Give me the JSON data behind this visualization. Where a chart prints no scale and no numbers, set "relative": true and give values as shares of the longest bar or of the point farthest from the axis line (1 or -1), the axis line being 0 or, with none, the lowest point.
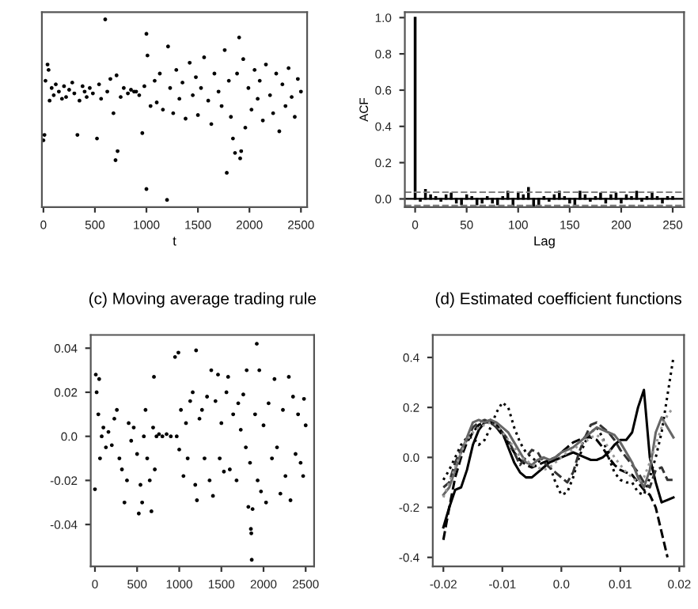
{
  "chart_data": [
    {
      "type": "scatter",
      "relative": true,
      "xlabel": "t",
      "tick_labels": "x",
      "marker": "circle",
      "xlim": [
        -15,
        2560
      ],
      "xticks": [
        0,
        500,
        1000,
        1500,
        2000,
        2500
      ],
      "x": [
        0,
        10,
        20,
        40,
        50,
        60,
        80,
        100,
        120,
        150,
        180,
        200,
        220,
        250,
        280,
        300,
        330,
        350,
        380,
        400,
        420,
        450,
        480,
        520,
        540,
        560,
        600,
        620,
        650,
        680,
        700,
        710,
        720,
        750,
        780,
        820,
        850,
        880,
        900,
        930,
        960,
        980,
        1000,
        1000,
        1010,
        1040,
        1080,
        1100,
        1130,
        1160,
        1200,
        1210,
        1230,
        1260,
        1290,
        1320,
        1350,
        1380,
        1420,
        1450,
        1480,
        1500,
        1530,
        1560,
        1600,
        1630,
        1660,
        1700,
        1730,
        1760,
        1780,
        1800,
        1820,
        1840,
        1860,
        1880,
        1900,
        1910,
        1920,
        1940,
        1960,
        1990,
        2020,
        2050,
        2080,
        2100,
        2130,
        2160,
        2200,
        2230,
        2260,
        2290,
        2320,
        2350,
        2380,
        2410,
        2440,
        2470,
        2500
      ],
      "series": [
        {
          "color": "#000000",
          "values": [
            0.33,
            0.36,
            0.66,
            0.75,
            0.72,
            0.55,
            0.62,
            0.58,
            0.64,
            0.6,
            0.56,
            0.63,
            0.57,
            0.61,
            0.65,
            0.59,
            0.36,
            0.55,
            0.63,
            0.6,
            0.57,
            0.62,
            0.59,
            0.34,
            0.64,
            0.56,
            1.0,
            0.6,
            0.67,
            0.48,
            0.22,
            0.69,
            0.27,
            0.57,
            0.62,
            0.59,
            0.61,
            0.6,
            0.6,
            0.58,
            0.37,
            0.63,
            0.06,
            0.92,
            0.8,
            0.52,
            0.66,
            0.54,
            0.7,
            0.5,
            0.0,
            0.85,
            0.62,
            0.48,
            0.72,
            0.56,
            0.65,
            0.45,
            0.76,
            0.58,
            0.68,
            0.47,
            0.62,
            0.79,
            0.55,
            0.42,
            0.7,
            0.6,
            0.52,
            0.83,
            0.15,
            0.66,
            0.46,
            0.34,
            0.26,
            0.7,
            0.9,
            0.23,
            0.27,
            0.78,
            0.4,
            0.62,
            0.5,
            0.72,
            0.56,
            0.66,
            0.44,
            0.75,
            0.58,
            0.48,
            0.7,
            0.38,
            0.64,
            0.52,
            0.73,
            0.57,
            0.46,
            0.67,
            0.6
          ]
        }
      ]
    },
    {
      "type": "bar",
      "xlabel": "Lag",
      "ylabel": "ACF",
      "xlim": [
        -10,
        261
      ],
      "xticks": [
        0,
        50,
        100,
        150,
        200,
        250
      ],
      "ylim": [
        -0.045,
        1.03
      ],
      "yticks": [
        {
          "value": 0,
          "label": "0.0"
        },
        0.2,
        0.4,
        0.6,
        0.8,
        {
          "value": 1,
          "label": "1.0"
        }
      ],
      "x": [
        0,
        5,
        10,
        15,
        20,
        25,
        30,
        35,
        40,
        45,
        50,
        55,
        60,
        65,
        70,
        75,
        80,
        85,
        90,
        95,
        100,
        105,
        110,
        115,
        120,
        125,
        130,
        135,
        140,
        145,
        150,
        155,
        160,
        165,
        170,
        175,
        180,
        185,
        190,
        195,
        200,
        205,
        210,
        215,
        220,
        225,
        230,
        235,
        240,
        245,
        250
      ],
      "series": [
        {
          "color": "#000000",
          "values": [
            1,
            -0.01,
            0.05,
            0.02,
            0.01,
            -0.01,
            0.02,
            0.03,
            -0.02,
            -0.03,
            0.02,
            0.01,
            -0.03,
            -0.02,
            0.01,
            -0.02,
            -0.03,
            0.01,
            0.04,
            -0.04,
            0.03,
            0.02,
            0.06,
            -0.04,
            -0.04,
            0.01,
            -0.01,
            0.02,
            0.04,
            0.01,
            -0.02,
            -0.03,
            0.04,
            0.02,
            -0.01,
            0.01,
            0.03,
            -0.02,
            0.02,
            0.03,
            -0.02,
            0.02,
            0.01,
            0.04,
            -0.01,
            0.01,
            0.03,
            0.01,
            -0.02,
            0.01,
            0.01
          ]
        }
      ],
      "ref_lines": [
        {
          "axis": "y",
          "value": 0,
          "color": "#000000",
          "line_style": "solid"
        },
        {
          "axis": "y",
          "value": 0.037,
          "color": "#808080",
          "line_style": "dashed"
        },
        {
          "axis": "y",
          "value": -0.037,
          "color": "#808080",
          "line_style": "dashed"
        }
      ]
    },
    {
      "type": "scatter",
      "title": "(c) Moving average trading rule",
      "marker": "circle",
      "xlim": [
        -50,
        2600
      ],
      "xticks": [
        0,
        500,
        1000,
        1500,
        2000,
        2500
      ],
      "ylim": [
        -0.059,
        0.046
      ],
      "yticks": [
        {
          "value": -0.04,
          "label": "-0.04"
        },
        {
          "value": -0.02,
          "label": "-0.02"
        },
        {
          "value": 0,
          "label": "0.0"
        },
        0.02,
        0.04
      ],
      "x": [
        0,
        10,
        20,
        40,
        50,
        60,
        80,
        100,
        130,
        160,
        200,
        230,
        260,
        290,
        320,
        350,
        380,
        400,
        430,
        460,
        500,
        520,
        540,
        560,
        580,
        600,
        620,
        650,
        670,
        690,
        700,
        710,
        730,
        760,
        800,
        850,
        900,
        950,
        970,
        990,
        1000,
        1020,
        1050,
        1080,
        1100,
        1130,
        1160,
        1190,
        1200,
        1210,
        1240,
        1270,
        1300,
        1330,
        1360,
        1380,
        1400,
        1430,
        1460,
        1480,
        1500,
        1530,
        1560,
        1580,
        1600,
        1640,
        1680,
        1700,
        1730,
        1760,
        1790,
        1800,
        1820,
        1840,
        1850,
        1855,
        1860,
        1870,
        1900,
        1920,
        1930,
        1950,
        1970,
        2000,
        2030,
        2060,
        2100,
        2130,
        2160,
        2200,
        2230,
        2260,
        2300,
        2320,
        2350,
        2380,
        2410,
        2440,
        2470,
        2480,
        2500
      ],
      "series": [
        {
          "color": "#000000",
          "values": [
            -0.024,
            0.028,
            0.02,
            0.01,
            0.026,
            -0.01,
            0.0,
            0.004,
            -0.005,
            0.002,
            -0.004,
            0.008,
            0.012,
            -0.01,
            -0.015,
            -0.03,
            -0.02,
            0.006,
            -0.002,
            0.004,
            -0.008,
            -0.035,
            -0.022,
            -0.03,
            0.0,
            0.012,
            -0.01,
            -0.02,
            -0.034,
            0.004,
            0.027,
            -0.015,
            0.0,
            0.001,
            0.0,
            0.001,
            0.0,
            0.036,
            0.0,
            0.038,
            -0.006,
            0.012,
            -0.018,
            0.006,
            -0.01,
            0.016,
            0.02,
            -0.022,
            0.039,
            -0.029,
            0.008,
            0.012,
            -0.01,
            0.018,
            -0.02,
            0.03,
            -0.027,
            0.016,
            0.028,
            -0.01,
            0.006,
            -0.016,
            0.02,
            0.027,
            -0.015,
            0.01,
            -0.02,
            0.015,
            0.003,
            0.019,
            -0.005,
            0.03,
            -0.032,
            -0.012,
            -0.042,
            -0.044,
            -0.056,
            -0.033,
            0.01,
            0.042,
            -0.02,
            0.03,
            -0.025,
            0.005,
            -0.03,
            0.015,
            -0.01,
            0.026,
            -0.005,
            -0.026,
            0.012,
            -0.018,
            0.027,
            -0.029,
            0.018,
            -0.008,
            0.01,
            -0.012,
            -0.018,
            0.017,
            0.005
          ]
        }
      ]
    },
    {
      "type": "line",
      "title": "(d) Estimated coefficient functions",
      "xlim": [
        -0.0218,
        0.0208
      ],
      "xticks": [
        -0.02,
        -0.01,
        {
          "value": 0,
          "label": "0.0"
        },
        0.01,
        0.02
      ],
      "ylim": [
        -0.436,
        0.49
      ],
      "yticks": [
        {
          "value": -0.4,
          "label": "-0.4"
        },
        {
          "value": -0.2,
          "label": "-0.2"
        },
        {
          "value": 0,
          "label": "0.0"
        },
        0.2,
        0.4
      ],
      "x": [
        -0.02,
        -0.019,
        -0.018,
        -0.017,
        -0.016,
        -0.015,
        -0.014,
        -0.013,
        -0.012,
        -0.011,
        -0.01,
        -0.009,
        -0.008,
        -0.007,
        -0.006,
        -0.005,
        -0.004,
        -0.003,
        -0.002,
        -0.001,
        0.0,
        0.001,
        0.002,
        0.003,
        0.004,
        0.005,
        0.006,
        0.007,
        0.008,
        0.009,
        0.01,
        0.011,
        0.012,
        0.013,
        0.014,
        0.015,
        0.016,
        0.017,
        0.018,
        0.019
      ],
      "series": [
        {
          "color": "#000000",
          "line_style": "solid",
          "values": [
            -0.28,
            -0.2,
            -0.13,
            -0.12,
            -0.05,
            0.05,
            0.11,
            0.14,
            0.15,
            0.13,
            0.1,
            0.04,
            -0.02,
            -0.06,
            -0.08,
            -0.08,
            -0.06,
            -0.04,
            -0.02,
            -0.01,
            0.0,
            0.01,
            0.02,
            0.01,
            0.0,
            -0.01,
            -0.01,
            0.0,
            0.02,
            0.05,
            0.07,
            0.07,
            0.1,
            0.2,
            0.27,
            0.0,
            -0.1,
            -0.18,
            -0.17,
            -0.16
          ]
        },
        {
          "color": "#000000",
          "line_style": "dotted",
          "values": [
            -0.09,
            -0.05,
            0.0,
            0.05,
            0.08,
            0.08,
            0.05,
            0.07,
            0.12,
            0.18,
            0.22,
            0.2,
            0.12,
            0.06,
            0.02,
            0.0,
            -0.02,
            0.0,
            -0.03,
            -0.1,
            -0.15,
            -0.14,
            -0.08,
            0.0,
            0.06,
            0.1,
            0.12,
            0.08,
            0.0,
            -0.06,
            -0.09,
            -0.1,
            -0.1,
            -0.14,
            -0.15,
            -0.08,
            0.0,
            0.1,
            0.25,
            0.4
          ]
        },
        {
          "color": "#000000",
          "line_style": "dashed",
          "values": [
            -0.33,
            -0.2,
            -0.08,
            0.0,
            0.06,
            0.1,
            0.13,
            0.14,
            0.14,
            0.12,
            0.09,
            0.06,
            0.02,
            -0.01,
            -0.03,
            -0.04,
            -0.03,
            -0.02,
            -0.01,
            0.0,
            0.02,
            0.04,
            0.06,
            0.07,
            0.08,
            0.08,
            0.07,
            0.04,
            0.0,
            -0.03,
            -0.05,
            -0.06,
            -0.07,
            -0.1,
            -0.13,
            -0.15,
            -0.2,
            -0.3,
            -0.4,
            null
          ]
        },
        {
          "color": "#333333",
          "line_style": "dashed",
          "values": [
            -0.12,
            -0.1,
            -0.02,
            0.03,
            0.07,
            0.12,
            0.14,
            0.15,
            0.14,
            0.12,
            0.1,
            0.07,
            0.02,
            -0.03,
            0.0,
            0.03,
            0.02,
            -0.02,
            -0.04,
            -0.06,
            -0.08,
            -0.1,
            -0.06,
            0.02,
            0.08,
            0.13,
            0.14,
            0.12,
            0.1,
            0.07,
            0.03,
            0.0,
            -0.03,
            -0.06,
            -0.1,
            -0.12,
            -0.05,
            -0.04,
            -0.09,
            -0.09
          ]
        },
        {
          "color": "#666666",
          "line_style": "solid",
          "values": [
            -0.15,
            -0.12,
            -0.05,
            0.02,
            0.08,
            0.14,
            0.15,
            0.14,
            0.15,
            0.14,
            0.12,
            0.1,
            0.06,
            0.02,
            -0.02,
            -0.03,
            -0.01,
            0.0,
            -0.01,
            0.0,
            0.02,
            0.03,
            0.04,
            0.06,
            0.08,
            0.1,
            0.12,
            0.11,
            0.1,
            0.09,
            0.06,
            0.02,
            -0.02,
            -0.08,
            -0.12,
            -0.05,
            0.1,
            0.16,
            0.12,
            0.08
          ]
        },
        {
          "color": "#999999",
          "line_style": "dotted",
          "values": [
            -0.16,
            -0.1,
            -0.04,
            0.02,
            0.07,
            0.1,
            0.12,
            0.13,
            0.14,
            0.13,
            0.1,
            0.07,
            0.04,
            0.0,
            -0.01,
            -0.03,
            -0.04,
            -0.05,
            -0.04,
            -0.02,
            0.0,
            0.02,
            0.03,
            0.05,
            0.06,
            0.08,
            0.09,
            0.07,
            0.04,
            0.0,
            -0.03,
            -0.06,
            -0.08,
            -0.1,
            -0.08,
            -0.02,
            0.05,
            0.12,
            0.17,
            0.2
          ]
        }
      ]
    }
  ]
}
